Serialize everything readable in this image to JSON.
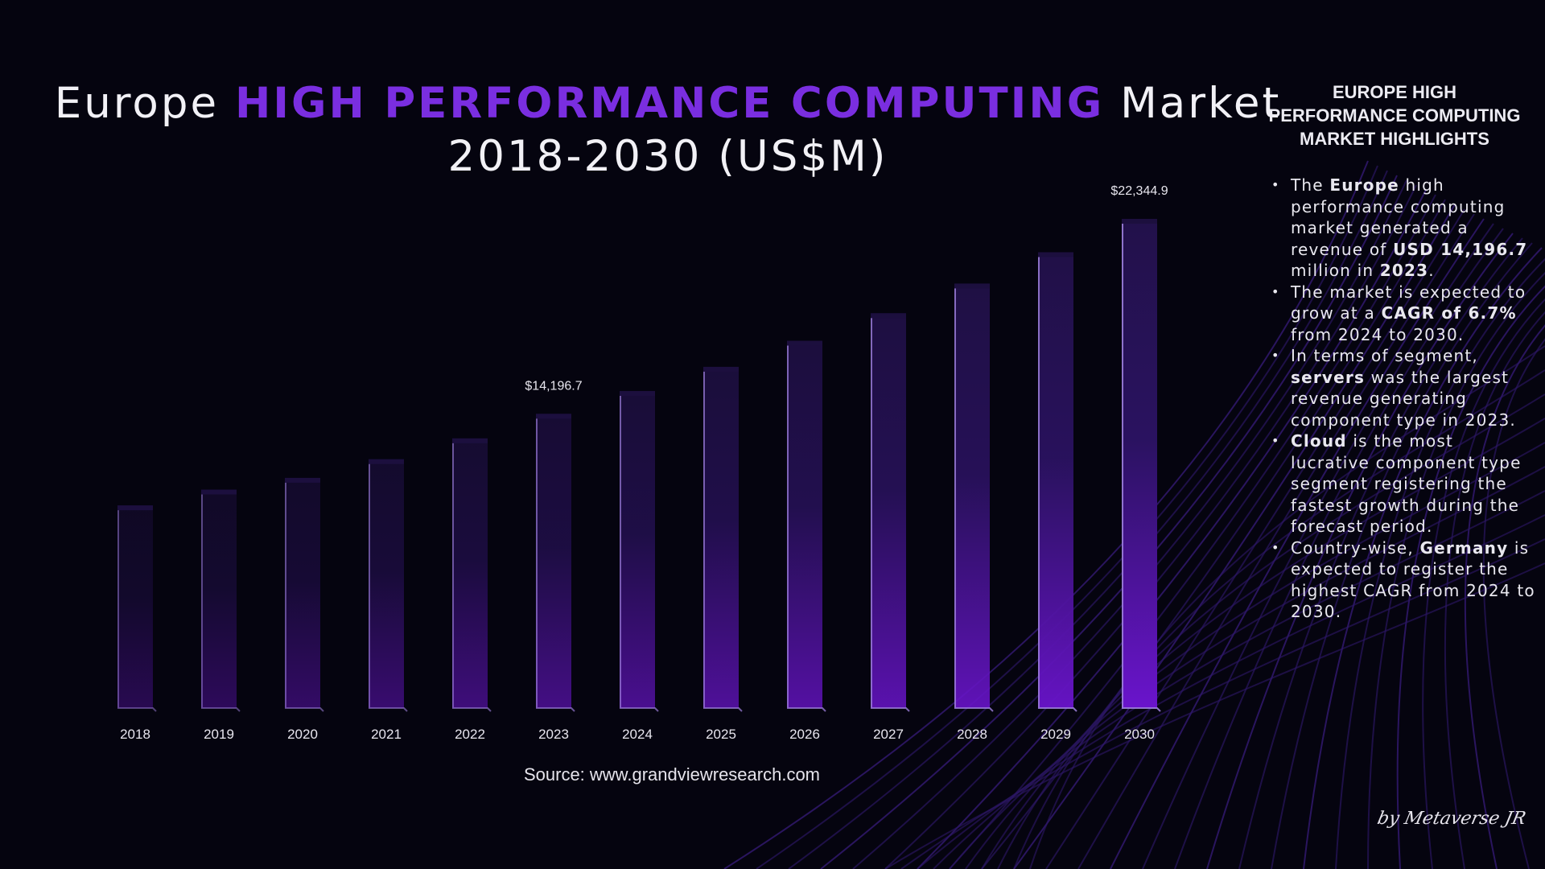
{
  "title": {
    "prefix": "Europe ",
    "accent": "HIGH PERFORMANCE COMPUTING",
    "suffix": " Market",
    "line2": "2018-2030 (US$M)"
  },
  "colors": {
    "background": "#05040f",
    "accent": "#7a2ee0",
    "bar_light": "#6a14cc",
    "bar_dark": "#181232",
    "text": "#ecebf2"
  },
  "chart_data": {
    "type": "bar",
    "title": "Europe HIGH PERFORMANCE COMPUTING Market 2018-2030 (US$M)",
    "xlabel": "",
    "ylabel": "",
    "categories": [
      "2018",
      "2019",
      "2020",
      "2021",
      "2022",
      "2023",
      "2024",
      "2025",
      "2026",
      "2027",
      "2028",
      "2029",
      "2030"
    ],
    "values": [
      10370,
      11030,
      11520,
      12300,
      13170,
      14196.7,
      15150,
      16160,
      17250,
      18400,
      19640,
      20950,
      22344.9
    ],
    "data_labels": [
      {
        "index": 5,
        "text": "$14,196.7"
      },
      {
        "index": 12,
        "text": "$22,344.9"
      }
    ],
    "ylim": [
      1900,
      22344.9
    ],
    "grid": false,
    "legend": "none"
  },
  "source": "Source: www.grandviewresearch.com",
  "highlights": {
    "title": "EUROPE HIGH PERFORMANCE COMPUTING MARKET HIGHLIGHTS",
    "items": [
      {
        "parts": [
          [
            "The ",
            false
          ],
          [
            "Europe",
            true
          ],
          [
            " high performance computing market generated a revenue of ",
            false
          ],
          [
            "USD 14,196.7",
            true
          ],
          [
            " million in ",
            false
          ],
          [
            "2023",
            true
          ],
          [
            ".",
            false
          ]
        ]
      },
      {
        "parts": [
          [
            "The market is expected to grow at a ",
            false
          ],
          [
            "CAGR of 6.7%",
            true
          ],
          [
            " from 2024 to 2030.",
            false
          ]
        ]
      },
      {
        "parts": [
          [
            "In terms of segment, ",
            false
          ],
          [
            "servers",
            true
          ],
          [
            " was the largest revenue generating component type in 2023.",
            false
          ]
        ]
      },
      {
        "parts": [
          [
            "Cloud",
            true
          ],
          [
            " is the most lucrative component type segment registering the fastest growth during the forecast period.",
            false
          ]
        ]
      },
      {
        "parts": [
          [
            "Country-wise, ",
            false
          ],
          [
            "Germany",
            true
          ],
          [
            " is expected to register the highest CAGR from 2024 to 2030.",
            false
          ]
        ]
      }
    ]
  },
  "signature": "by Metaverse JR"
}
